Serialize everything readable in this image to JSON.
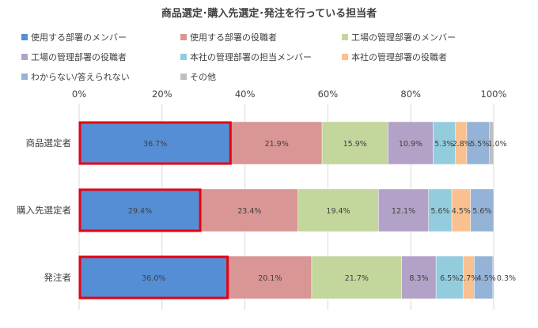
{
  "chart_data": {
    "type": "bar",
    "orientation": "horizontal",
    "stacked": "percent",
    "title": "商品選定･購入先選定･発注を行っている担当者",
    "categories": [
      "商品選定者",
      "購入先選定者",
      "発注者"
    ],
    "xlim": [
      0,
      100
    ],
    "xticks": [
      "0%",
      "20%",
      "40%",
      "60%",
      "80%",
      "100%"
    ],
    "legend_position": "top",
    "series": [
      {
        "name": "使用する部署のメンバー",
        "color": "#558ed5",
        "values": [
          36.7,
          29.4,
          36.0
        ]
      },
      {
        "name": "使用する部署の役職者",
        "color": "#d99694",
        "values": [
          21.9,
          23.4,
          20.1
        ]
      },
      {
        "name": "工場の管理部署のメンバー",
        "color": "#c3d69b",
        "values": [
          15.9,
          19.4,
          21.7
        ]
      },
      {
        "name": "工場の管理部署の役職者",
        "color": "#b3a2c7",
        "values": [
          10.9,
          12.1,
          8.3
        ]
      },
      {
        "name": "本社の管理部署の担当メンバー",
        "color": "#93cddd",
        "values": [
          5.3,
          5.6,
          6.5
        ]
      },
      {
        "name": "本社の管理部署の役職者",
        "color": "#fac090",
        "values": [
          2.8,
          4.5,
          2.7
        ]
      },
      {
        "name": "わからない/答えられない",
        "color": "#95b3d7",
        "values": [
          5.5,
          5.6,
          4.5
        ]
      },
      {
        "name": "その他",
        "color": "#bfbfbf",
        "values": [
          1.0,
          0.0,
          0.3
        ]
      }
    ],
    "data_labels": [
      [
        "36.7%",
        "21.9%",
        "15.9%",
        "10.9%",
        "5.3%",
        "2.8%",
        "5.5%",
        "1.0%"
      ],
      [
        "29.4%",
        "23.4%",
        "19.4%",
        "12.1%",
        "5.6%",
        "4.5%",
        "5.6%",
        ""
      ],
      [
        "36.0%",
        "20.1%",
        "21.7%",
        "8.3%",
        "6.5%",
        "2.7%",
        "4.5%",
        "0.3%"
      ]
    ],
    "highlight": {
      "series_index": 0,
      "outline_color": "#e60012"
    }
  }
}
